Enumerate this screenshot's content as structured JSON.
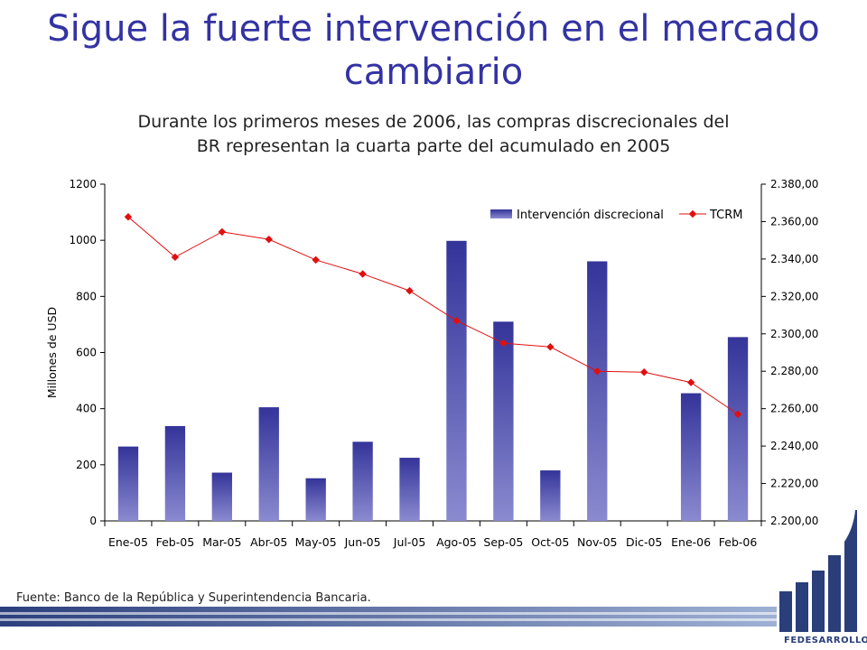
{
  "slide": {
    "title_line1": "Sigue la fuerte intervención en el mercado",
    "title_line2": "cambiario",
    "subtitle_line1": "Durante los primeros meses de 2006, las compras discrecionales del",
    "subtitle_line2": "BR representan la cuarta parte del acumulado en 2005",
    "source": "Fuente: Banco de la República y Superintendencia Bancaria.",
    "logo_text": "FEDESARROLLO"
  },
  "chart_data": {
    "type": "bar",
    "categories": [
      "Ene-05",
      "Feb-05",
      "Mar-05",
      "Abr-05",
      "May-05",
      "Jun-05",
      "Jul-05",
      "Ago-05",
      "Sep-05",
      "Oct-05",
      "Nov-05",
      "Dic-05",
      "Ene-06",
      "Feb-06"
    ],
    "ylabel": "Millones de USD",
    "ylim": [
      0,
      1200
    ],
    "yticks": [
      0,
      200,
      400,
      600,
      800,
      1000,
      1200
    ],
    "y2lim": [
      2200,
      2380
    ],
    "y2ticks": [
      "2.200,00",
      "2.220,00",
      "2.240,00",
      "2.260,00",
      "2.280,00",
      "2.300,00",
      "2.320,00",
      "2.340,00",
      "2.360,00",
      "2.380,00"
    ],
    "legend_position": "top-right",
    "series": [
      {
        "name": "Intervención discrecional",
        "type": "bar",
        "axis": "left",
        "color": "#3a3aa0",
        "values": [
          265,
          338,
          172,
          405,
          152,
          282,
          225,
          998,
          710,
          180,
          925,
          0,
          455,
          655
        ]
      },
      {
        "name": "TCRM",
        "type": "line",
        "axis": "right",
        "color": "#e01010",
        "values": [
          2362.5,
          2341,
          2354.5,
          2350.5,
          2339.5,
          2332,
          2323,
          2307,
          2295,
          2293,
          2280,
          2279.5,
          2274,
          2257
        ]
      }
    ]
  },
  "colors": {
    "title": "#3333a3",
    "bar_top": "#34349a",
    "bar_bottom": "#8a8ad0",
    "line": "#e01010",
    "brand": "#2a3e7a"
  }
}
